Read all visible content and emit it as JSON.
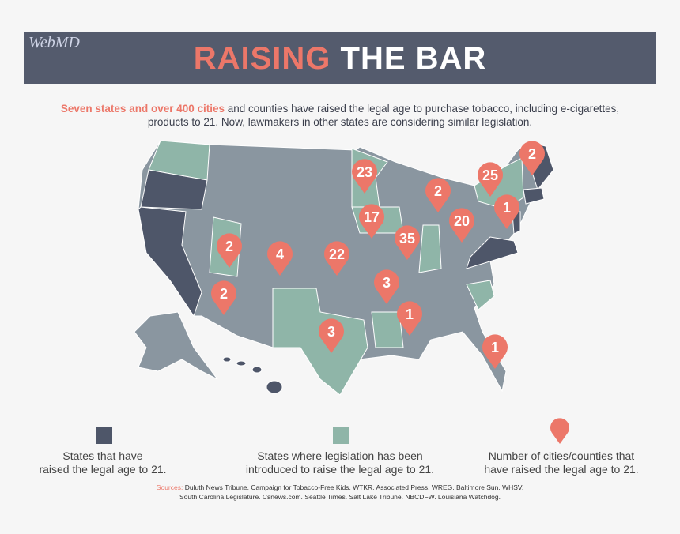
{
  "header": {
    "logo": "WebMD",
    "title_highlight": "RAISING",
    "title_rest": "THE BAR"
  },
  "intro": {
    "highlight": "Seven states and over 400 cities",
    "line1": "and counties have raised the legal age to purchase tobacco, including e-cigarettes,",
    "line2": "products to 21. Now, lawmakers in other states are considering similar legislation."
  },
  "pins": [
    2,
    25,
    23,
    2,
    1,
    20,
    17,
    35,
    2,
    4,
    22,
    3,
    2,
    1,
    3,
    1
  ],
  "legend": [
    {
      "line1": "States that have",
      "line2": "raised the legal age to 21."
    },
    {
      "line1": "States where legislation has been",
      "line2": "introduced to raise the legal age to 21."
    },
    {
      "line1": "Number of cities/counties that",
      "line2": "have raised the legal age to 21."
    }
  ],
  "sources": {
    "label": "Sources:",
    "line1": "Duluth News Tribune. Campaign for Tobacco-Free Kids. WTKR. Associated Press. WREG. Baltimore Sun. WHSV.",
    "line2": "South Carolina Legislature. Csnews.com. Seattle Times. Salt Lake Tribune. NBCDFW. Louisiana Watchdog."
  }
}
